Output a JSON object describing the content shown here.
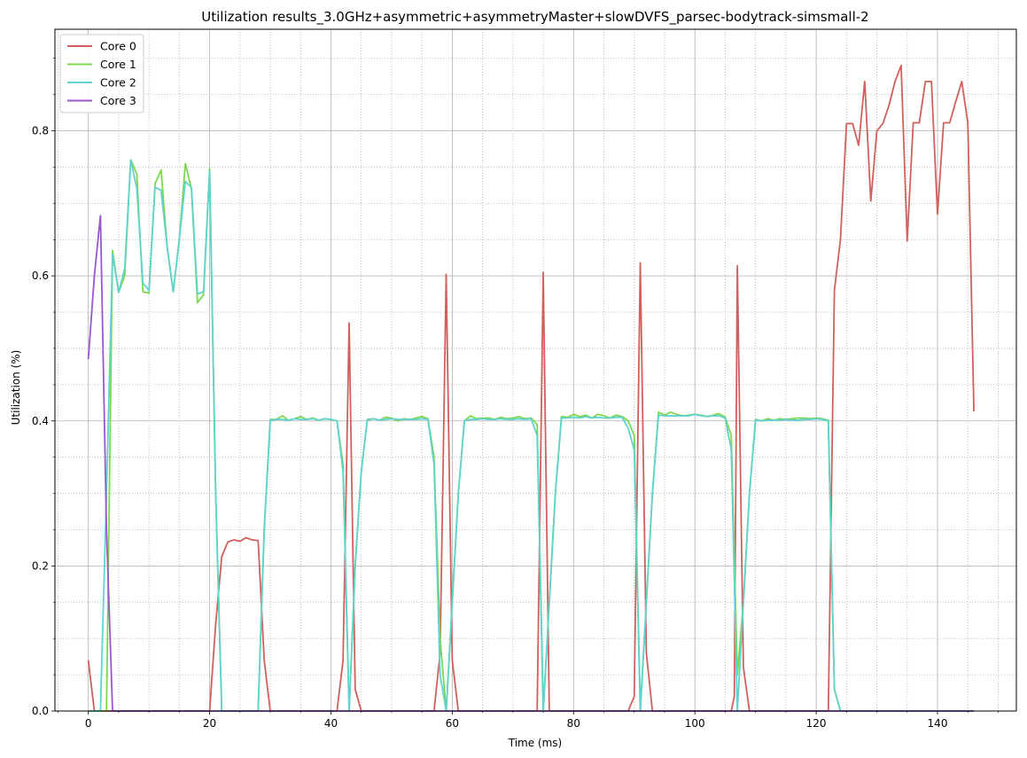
{
  "chart_data": {
    "type": "line",
    "title": "Utilization results_3.0GHz+asymmetric+asymmetryMaster+slowDVFS_parsec-bodytrack-simsmall-2",
    "xlabel": "Time (ms)",
    "ylabel": "Utilization (%)",
    "xlim": [
      -5.5,
      153
    ],
    "ylim": [
      0,
      0.94
    ],
    "xticks": [
      0,
      20,
      40,
      60,
      80,
      100,
      120,
      140
    ],
    "yticks": [
      0.0,
      0.2,
      0.4,
      0.6,
      0.8
    ],
    "xtick_labels": [
      "0",
      "20",
      "40",
      "60",
      "80",
      "100",
      "120",
      "140"
    ],
    "ytick_labels": [
      "0.0",
      "0.2",
      "0.4",
      "0.6",
      "0.8"
    ],
    "grid": "major solid, minor dotted",
    "legend_position": "top-left",
    "series": [
      {
        "name": "Core 0",
        "color": "#d1605d",
        "points": [
          [
            0,
            0.07
          ],
          [
            1,
            0
          ],
          [
            4,
            0
          ],
          [
            20,
            0
          ],
          [
            21,
            0.12
          ],
          [
            22,
            0.213
          ],
          [
            23,
            0.233
          ],
          [
            24,
            0.236
          ],
          [
            25,
            0.234
          ],
          [
            26,
            0.239
          ],
          [
            27,
            0.236
          ],
          [
            28,
            0.235
          ],
          [
            29,
            0.07
          ],
          [
            30,
            0
          ],
          [
            41,
            0
          ],
          [
            42,
            0.07
          ],
          [
            43,
            0.535
          ],
          [
            44,
            0.03
          ],
          [
            45,
            0
          ],
          [
            57,
            0
          ],
          [
            58,
            0.08
          ],
          [
            59,
            0.602
          ],
          [
            60,
            0.07
          ],
          [
            61,
            0
          ],
          [
            74,
            0
          ],
          [
            75,
            0.605
          ],
          [
            76,
            0
          ],
          [
            89,
            0
          ],
          [
            90,
            0.02
          ],
          [
            91,
            0.618
          ],
          [
            92,
            0.08
          ],
          [
            93,
            0
          ],
          [
            106,
            0
          ],
          [
            106.5,
            0.02
          ],
          [
            107,
            0.614
          ],
          [
            108,
            0.06
          ],
          [
            109,
            0
          ],
          [
            122,
            0
          ],
          [
            123,
            0.58
          ],
          [
            124,
            0.65
          ],
          [
            125,
            0.81
          ],
          [
            126,
            0.81
          ],
          [
            127,
            0.78
          ],
          [
            128,
            0.868
          ],
          [
            129,
            0.703
          ],
          [
            130,
            0.8
          ],
          [
            131,
            0.81
          ],
          [
            132,
            0.835
          ],
          [
            133,
            0.868
          ],
          [
            134,
            0.89
          ],
          [
            135,
            0.648
          ],
          [
            136,
            0.811
          ],
          [
            137,
            0.811
          ],
          [
            138,
            0.868
          ],
          [
            139,
            0.868
          ],
          [
            140,
            0.685
          ],
          [
            141,
            0.811
          ],
          [
            142,
            0.811
          ],
          [
            143,
            0.84
          ],
          [
            144,
            0.868
          ],
          [
            145,
            0.811
          ],
          [
            146,
            0.413
          ]
        ]
      },
      {
        "name": "Core 1",
        "color": "#7ed74f",
        "points": [
          [
            0,
            0
          ],
          [
            3,
            0
          ],
          [
            4,
            0.635
          ],
          [
            5,
            0.577
          ],
          [
            6,
            0.6
          ],
          [
            7,
            0.76
          ],
          [
            8,
            0.74
          ],
          [
            9,
            0.578
          ],
          [
            10,
            0.576
          ],
          [
            11,
            0.727
          ],
          [
            12,
            0.746
          ],
          [
            13,
            0.64
          ],
          [
            14,
            0.578
          ],
          [
            15,
            0.65
          ],
          [
            16,
            0.755
          ],
          [
            17,
            0.72
          ],
          [
            18,
            0.563
          ],
          [
            19,
            0.574
          ],
          [
            20,
            0.748
          ],
          [
            21,
            0.3
          ],
          [
            22,
            0
          ],
          [
            28,
            0
          ],
          [
            29,
            0.25
          ],
          [
            30,
            0.402
          ],
          [
            31,
            0.402
          ],
          [
            32,
            0.407
          ],
          [
            33,
            0.401
          ],
          [
            34,
            0.403
          ],
          [
            35,
            0.406
          ],
          [
            36,
            0.402
          ],
          [
            37,
            0.404
          ],
          [
            38,
            0.401
          ],
          [
            39,
            0.403
          ],
          [
            40,
            0.402
          ],
          [
            41,
            0.4
          ],
          [
            42,
            0.34
          ],
          [
            43,
            0
          ],
          [
            44,
            0.2
          ],
          [
            45,
            0.33
          ],
          [
            46,
            0.402
          ],
          [
            47,
            0.403
          ],
          [
            48,
            0.401
          ],
          [
            49,
            0.405
          ],
          [
            50,
            0.404
          ],
          [
            51,
            0.4
          ],
          [
            52,
            0.403
          ],
          [
            53,
            0.402
          ],
          [
            54,
            0.404
          ],
          [
            55,
            0.406
          ],
          [
            56,
            0.403
          ],
          [
            57,
            0.35
          ],
          [
            58,
            0.1
          ],
          [
            59,
            0
          ],
          [
            60,
            0.15
          ],
          [
            61,
            0.3
          ],
          [
            62,
            0.4
          ],
          [
            63,
            0.407
          ],
          [
            64,
            0.403
          ],
          [
            65,
            0.404
          ],
          [
            66,
            0.404
          ],
          [
            67,
            0.402
          ],
          [
            68,
            0.405
          ],
          [
            69,
            0.403
          ],
          [
            70,
            0.404
          ],
          [
            71,
            0.406
          ],
          [
            72,
            0.403
          ],
          [
            73,
            0.404
          ],
          [
            74,
            0.395
          ],
          [
            75,
            0
          ],
          [
            76,
            0.15
          ],
          [
            77,
            0.3
          ],
          [
            78,
            0.406
          ],
          [
            79,
            0.405
          ],
          [
            80,
            0.409
          ],
          [
            81,
            0.406
          ],
          [
            82,
            0.408
          ],
          [
            83,
            0.404
          ],
          [
            84,
            0.409
          ],
          [
            85,
            0.407
          ],
          [
            86,
            0.404
          ],
          [
            87,
            0.408
          ],
          [
            88,
            0.406
          ],
          [
            89,
            0.4
          ],
          [
            90,
            0.38
          ],
          [
            91,
            0
          ],
          [
            92,
            0.15
          ],
          [
            93,
            0.3
          ],
          [
            94,
            0.412
          ],
          [
            95,
            0.408
          ],
          [
            96,
            0.412
          ],
          [
            97,
            0.409
          ],
          [
            98,
            0.407
          ],
          [
            99,
            0.408
          ],
          [
            100,
            0.409
          ],
          [
            101,
            0.408
          ],
          [
            102,
            0.406
          ],
          [
            103,
            0.408
          ],
          [
            104,
            0.41
          ],
          [
            105,
            0.405
          ],
          [
            106,
            0.38
          ],
          [
            107,
            0.05
          ],
          [
            108,
            0.15
          ],
          [
            109,
            0.3
          ],
          [
            110,
            0.402
          ],
          [
            111,
            0.4
          ],
          [
            112,
            0.403
          ],
          [
            113,
            0.401
          ],
          [
            114,
            0.403
          ],
          [
            115,
            0.402
          ],
          [
            116,
            0.403
          ],
          [
            117,
            0.404
          ],
          [
            118,
            0.404
          ],
          [
            119,
            0.403
          ],
          [
            120,
            0.404
          ],
          [
            121,
            0.403
          ],
          [
            122,
            0.401
          ],
          [
            123,
            0.03
          ],
          [
            124,
            0
          ],
          [
            146,
            0
          ]
        ]
      },
      {
        "name": "Core 2",
        "color": "#5fd3cf",
        "points": [
          [
            0,
            0
          ],
          [
            2,
            0
          ],
          [
            3,
            0.3
          ],
          [
            4,
            0.63
          ],
          [
            5,
            0.577
          ],
          [
            6,
            0.61
          ],
          [
            7,
            0.76
          ],
          [
            8,
            0.72
          ],
          [
            9,
            0.59
          ],
          [
            10,
            0.58
          ],
          [
            11,
            0.722
          ],
          [
            12,
            0.718
          ],
          [
            13,
            0.64
          ],
          [
            14,
            0.578
          ],
          [
            15,
            0.65
          ],
          [
            16,
            0.73
          ],
          [
            17,
            0.722
          ],
          [
            18,
            0.575
          ],
          [
            19,
            0.578
          ],
          [
            20,
            0.745
          ],
          [
            21,
            0.3
          ],
          [
            22,
            0
          ],
          [
            28,
            0
          ],
          [
            29,
            0.25
          ],
          [
            30,
            0.401
          ],
          [
            31,
            0.402
          ],
          [
            32,
            0.402
          ],
          [
            33,
            0.401
          ],
          [
            34,
            0.403
          ],
          [
            35,
            0.402
          ],
          [
            36,
            0.402
          ],
          [
            37,
            0.403
          ],
          [
            38,
            0.401
          ],
          [
            39,
            0.403
          ],
          [
            40,
            0.402
          ],
          [
            41,
            0.4
          ],
          [
            42,
            0.33
          ],
          [
            43,
            0
          ],
          [
            44,
            0.2
          ],
          [
            45,
            0.33
          ],
          [
            46,
            0.401
          ],
          [
            47,
            0.403
          ],
          [
            48,
            0.401
          ],
          [
            49,
            0.402
          ],
          [
            50,
            0.403
          ],
          [
            51,
            0.402
          ],
          [
            52,
            0.402
          ],
          [
            53,
            0.402
          ],
          [
            54,
            0.402
          ],
          [
            55,
            0.403
          ],
          [
            56,
            0.402
          ],
          [
            57,
            0.34
          ],
          [
            58,
            0.05
          ],
          [
            59,
            0
          ],
          [
            60,
            0.15
          ],
          [
            61,
            0.3
          ],
          [
            62,
            0.4
          ],
          [
            63,
            0.402
          ],
          [
            64,
            0.402
          ],
          [
            65,
            0.403
          ],
          [
            66,
            0.402
          ],
          [
            67,
            0.402
          ],
          [
            68,
            0.403
          ],
          [
            69,
            0.402
          ],
          [
            70,
            0.402
          ],
          [
            71,
            0.403
          ],
          [
            72,
            0.402
          ],
          [
            73,
            0.403
          ],
          [
            74,
            0.38
          ],
          [
            75,
            0
          ],
          [
            76,
            0.15
          ],
          [
            77,
            0.3
          ],
          [
            78,
            0.404
          ],
          [
            79,
            0.404
          ],
          [
            80,
            0.405
          ],
          [
            81,
            0.404
          ],
          [
            82,
            0.406
          ],
          [
            83,
            0.404
          ],
          [
            84,
            0.405
          ],
          [
            85,
            0.404
          ],
          [
            86,
            0.404
          ],
          [
            87,
            0.405
          ],
          [
            88,
            0.405
          ],
          [
            89,
            0.39
          ],
          [
            90,
            0.36
          ],
          [
            91,
            0
          ],
          [
            92,
            0.15
          ],
          [
            93,
            0.3
          ],
          [
            94,
            0.408
          ],
          [
            95,
            0.407
          ],
          [
            96,
            0.407
          ],
          [
            97,
            0.407
          ],
          [
            98,
            0.407
          ],
          [
            99,
            0.407
          ],
          [
            100,
            0.409
          ],
          [
            101,
            0.407
          ],
          [
            102,
            0.406
          ],
          [
            103,
            0.407
          ],
          [
            104,
            0.407
          ],
          [
            105,
            0.404
          ],
          [
            106,
            0.36
          ],
          [
            107,
            0
          ],
          [
            108,
            0.15
          ],
          [
            109,
            0.3
          ],
          [
            110,
            0.401
          ],
          [
            111,
            0.4
          ],
          [
            112,
            0.401
          ],
          [
            113,
            0.401
          ],
          [
            114,
            0.401
          ],
          [
            115,
            0.402
          ],
          [
            116,
            0.401
          ],
          [
            117,
            0.401
          ],
          [
            118,
            0.402
          ],
          [
            119,
            0.402
          ],
          [
            120,
            0.403
          ],
          [
            121,
            0.402
          ],
          [
            122,
            0.4
          ],
          [
            123,
            0.03
          ],
          [
            124,
            0
          ],
          [
            146,
            0
          ]
        ]
      },
      {
        "name": "Core 3",
        "color": "#9b56d2",
        "points": [
          [
            0,
            0.485
          ],
          [
            1,
            0.6
          ],
          [
            2,
            0.683
          ],
          [
            3,
            0.25
          ],
          [
            4,
            0
          ],
          [
            146,
            0
          ]
        ]
      }
    ]
  }
}
